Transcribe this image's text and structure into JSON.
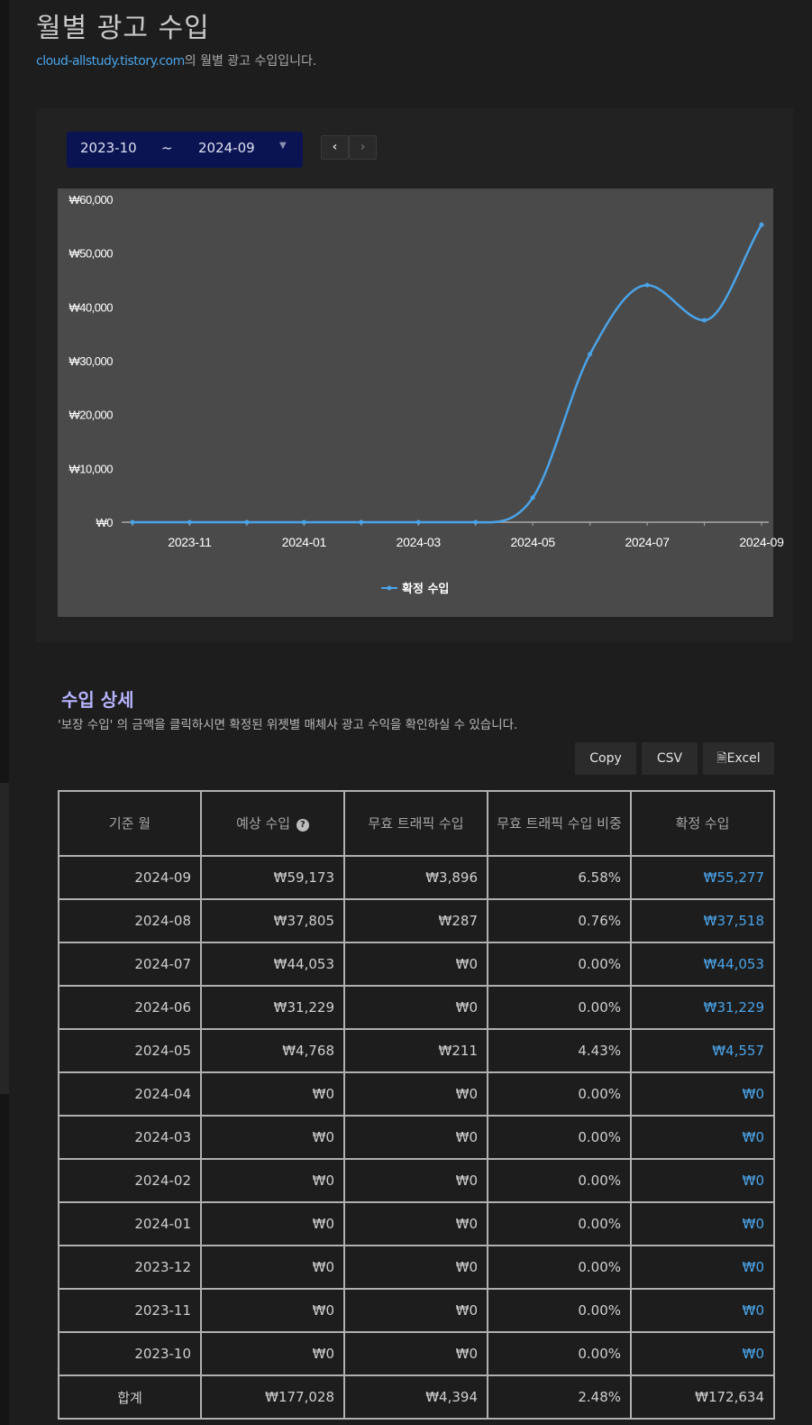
{
  "header": {
    "title": "월별 광고 수입",
    "site": "cloud-allstudy.tistory.com",
    "subtitle_suffix": "의 월별 광고 수입입니다."
  },
  "range": {
    "from": "2023-10",
    "separator": "~",
    "to": "2024-09",
    "prev_icon": "chevron-left-icon",
    "next_icon": "chevron-right-icon"
  },
  "chart_data": {
    "type": "line",
    "x": [
      "2023-10",
      "2023-11",
      "2023-12",
      "2024-01",
      "2024-02",
      "2024-03",
      "2024-04",
      "2024-05",
      "2024-06",
      "2024-07",
      "2024-08",
      "2024-09"
    ],
    "x_tick_labels": [
      "2023-11",
      "2024-01",
      "2024-03",
      "2024-05",
      "2024-07",
      "2024-09"
    ],
    "series": [
      {
        "name": "확정 수입",
        "values": [
          0,
          0,
          0,
          0,
          0,
          0,
          0,
          4557,
          31229,
          44053,
          37518,
          55277
        ]
      }
    ],
    "y_tick_labels": [
      "₩0",
      "₩10,000",
      "₩20,000",
      "₩30,000",
      "₩40,000",
      "₩50,000",
      "₩60,000"
    ],
    "ylim": [
      0,
      60000
    ],
    "legend": "bottom",
    "series_color": "#4aa3e8"
  },
  "details": {
    "title": "수입 상세",
    "description": "'보장 수입' 의 금액을 클릭하시면 확정된 위젯별 매체사 광고 수익을 확인하실 수 있습니다.",
    "buttons": {
      "copy": "Copy",
      "csv": "CSV",
      "excel": "Excel"
    },
    "columns": [
      "기준 월",
      "예상 수입",
      "무효 트래픽 수입",
      "무효 트래픽 수입 비중",
      "확정 수입"
    ],
    "rows": [
      [
        "2024-09",
        "₩59,173",
        "₩3,896",
        "6.58%",
        "₩55,277"
      ],
      [
        "2024-08",
        "₩37,805",
        "₩287",
        "0.76%",
        "₩37,518"
      ],
      [
        "2024-07",
        "₩44,053",
        "₩0",
        "0.00%",
        "₩44,053"
      ],
      [
        "2024-06",
        "₩31,229",
        "₩0",
        "0.00%",
        "₩31,229"
      ],
      [
        "2024-05",
        "₩4,768",
        "₩211",
        "4.43%",
        "₩4,557"
      ],
      [
        "2024-04",
        "₩0",
        "₩0",
        "0.00%",
        "₩0"
      ],
      [
        "2024-03",
        "₩0",
        "₩0",
        "0.00%",
        "₩0"
      ],
      [
        "2024-02",
        "₩0",
        "₩0",
        "0.00%",
        "₩0"
      ],
      [
        "2024-01",
        "₩0",
        "₩0",
        "0.00%",
        "₩0"
      ],
      [
        "2023-12",
        "₩0",
        "₩0",
        "0.00%",
        "₩0"
      ],
      [
        "2023-11",
        "₩0",
        "₩0",
        "0.00%",
        "₩0"
      ],
      [
        "2023-10",
        "₩0",
        "₩0",
        "0.00%",
        "₩0"
      ]
    ],
    "total": [
      "합계",
      "₩177,028",
      "₩4,394",
      "2.48%",
      "₩172,634"
    ]
  }
}
